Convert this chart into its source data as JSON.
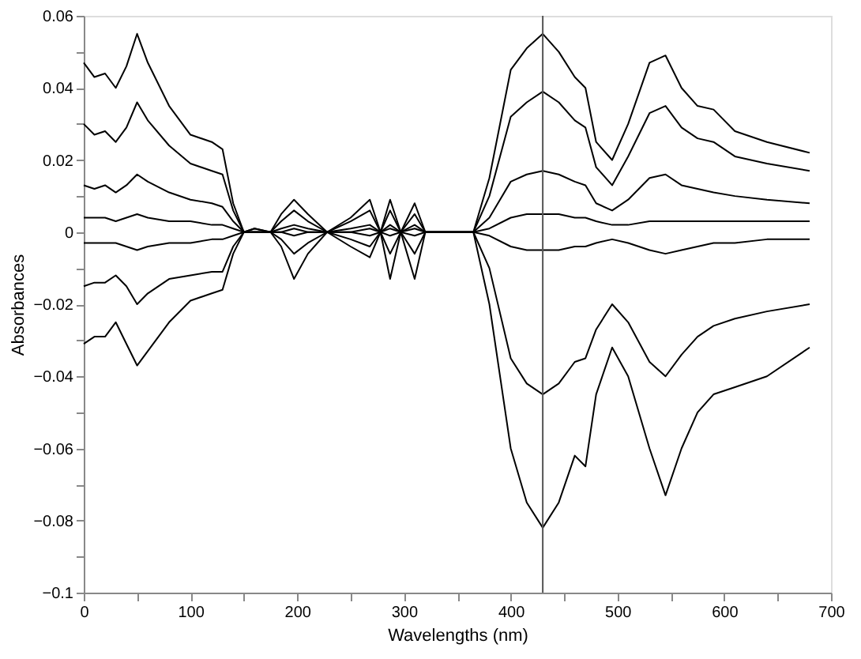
{
  "chart_data": {
    "type": "line",
    "xlabel": "Wavelengths (nm)",
    "ylabel": "Absorbances",
    "x": [
      0,
      10,
      20,
      30,
      40,
      50,
      60,
      80,
      100,
      120,
      130,
      140,
      150,
      160,
      175,
      185,
      197,
      210,
      228,
      250,
      268,
      278,
      287,
      297,
      310,
      320,
      340,
      365,
      380,
      400,
      415,
      430,
      445,
      460,
      470,
      480,
      495,
      510,
      530,
      545,
      560,
      575,
      590,
      610,
      640,
      680
    ],
    "series": [
      {
        "color": "#000000",
        "values": [
          0.047,
          0.043,
          0.044,
          0.04,
          0.046,
          0.055,
          0.047,
          0.035,
          0.027,
          0.025,
          0.023,
          0.008,
          0.0,
          0.001,
          0.0,
          0.005,
          0.009,
          0.005,
          0.0,
          0.004,
          0.009,
          0.0,
          0.009,
          0.0,
          0.008,
          0.0,
          0.0,
          0.0,
          0.015,
          0.045,
          0.051,
          0.055,
          0.05,
          0.043,
          0.04,
          0.025,
          0.02,
          0.03,
          0.047,
          0.049,
          0.04,
          0.035,
          0.034,
          0.028,
          0.025,
          0.022
        ]
      },
      {
        "color": "#000000",
        "values": [
          0.03,
          0.027,
          0.028,
          0.025,
          0.029,
          0.036,
          0.031,
          0.024,
          0.019,
          0.017,
          0.016,
          0.006,
          0.0,
          0.001,
          0.0,
          0.003,
          0.006,
          0.003,
          0.0,
          0.003,
          0.006,
          0.0,
          0.006,
          0.0,
          0.005,
          0.0,
          0.0,
          0.0,
          0.01,
          0.032,
          0.036,
          0.039,
          0.036,
          0.031,
          0.029,
          0.018,
          0.013,
          0.021,
          0.033,
          0.035,
          0.029,
          0.026,
          0.025,
          0.021,
          0.019,
          0.017
        ]
      },
      {
        "color": "#000000",
        "values": [
          0.013,
          0.012,
          0.013,
          0.011,
          0.013,
          0.016,
          0.014,
          0.011,
          0.009,
          0.008,
          0.007,
          0.003,
          0.0,
          0.0,
          0.0,
          0.001,
          0.002,
          0.001,
          0.0,
          0.001,
          0.002,
          0.0,
          0.002,
          0.0,
          0.002,
          0.0,
          0.0,
          0.0,
          0.004,
          0.014,
          0.016,
          0.017,
          0.016,
          0.014,
          0.013,
          0.008,
          0.006,
          0.009,
          0.015,
          0.016,
          0.013,
          0.012,
          0.011,
          0.01,
          0.009,
          0.008
        ]
      },
      {
        "color": "#000000",
        "values": [
          0.004,
          0.004,
          0.004,
          0.003,
          0.004,
          0.005,
          0.004,
          0.003,
          0.003,
          0.002,
          0.002,
          0.001,
          0.0,
          0.0,
          0.0,
          0.0,
          0.001,
          0.0,
          0.0,
          0.0,
          0.001,
          0.0,
          0.001,
          0.0,
          0.001,
          0.0,
          0.0,
          0.0,
          0.001,
          0.004,
          0.005,
          0.005,
          0.005,
          0.004,
          0.004,
          0.003,
          0.002,
          0.002,
          0.003,
          0.003,
          0.003,
          0.003,
          0.003,
          0.003,
          0.003,
          0.003
        ]
      },
      {
        "color": "#000000",
        "values": [
          -0.003,
          -0.003,
          -0.003,
          -0.003,
          -0.004,
          -0.005,
          -0.004,
          -0.003,
          -0.003,
          -0.002,
          -0.002,
          -0.001,
          0.0,
          0.0,
          0.0,
          0.0,
          -0.001,
          0.0,
          0.0,
          0.0,
          -0.001,
          0.0,
          -0.001,
          0.0,
          -0.001,
          0.0,
          0.0,
          0.0,
          -0.001,
          -0.004,
          -0.005,
          -0.005,
          -0.005,
          -0.004,
          -0.004,
          -0.003,
          -0.002,
          -0.003,
          -0.005,
          -0.006,
          -0.005,
          -0.004,
          -0.003,
          -0.003,
          -0.002,
          -0.002
        ]
      },
      {
        "color": "#000000",
        "values": [
          -0.015,
          -0.014,
          -0.014,
          -0.012,
          -0.015,
          -0.02,
          -0.017,
          -0.013,
          -0.012,
          -0.011,
          -0.011,
          -0.004,
          0.0,
          0.0,
          0.0,
          -0.002,
          -0.006,
          -0.003,
          0.0,
          -0.002,
          -0.004,
          0.0,
          -0.006,
          0.0,
          -0.006,
          0.0,
          0.0,
          0.0,
          -0.01,
          -0.035,
          -0.042,
          -0.045,
          -0.042,
          -0.036,
          -0.035,
          -0.027,
          -0.02,
          -0.025,
          -0.036,
          -0.04,
          -0.034,
          -0.029,
          -0.026,
          -0.024,
          -0.022,
          -0.02
        ]
      },
      {
        "color": "#000000",
        "values": [
          -0.031,
          -0.029,
          -0.029,
          -0.025,
          -0.031,
          -0.037,
          -0.033,
          -0.025,
          -0.019,
          -0.017,
          -0.016,
          -0.006,
          0.0,
          0.0,
          0.0,
          -0.004,
          -0.013,
          -0.006,
          0.0,
          -0.004,
          -0.007,
          0.0,
          -0.013,
          0.0,
          -0.013,
          0.0,
          0.0,
          0.0,
          -0.02,
          -0.06,
          -0.075,
          -0.082,
          -0.075,
          -0.062,
          -0.065,
          -0.045,
          -0.032,
          -0.04,
          -0.06,
          -0.073,
          -0.06,
          -0.05,
          -0.045,
          -0.043,
          -0.04,
          -0.032
        ]
      }
    ],
    "xlim": [
      0,
      700
    ],
    "xticks": [
      0,
      {
        "value": 50,
        "label": null
      },
      100,
      {
        "value": 150,
        "label": null
      },
      200,
      {
        "value": 250,
        "label": null
      },
      300,
      {
        "value": 350,
        "label": null
      },
      400,
      {
        "value": 450,
        "label": null
      },
      500,
      {
        "value": 550,
        "label": null
      },
      600,
      {
        "value": 650,
        "label": null
      },
      700
    ],
    "ylim": [
      -0.1,
      0.06
    ],
    "yticks": [
      {
        "value": -0.1,
        "label": "−0.1"
      },
      {
        "value": -0.09,
        "label": null
      },
      {
        "value": -0.08,
        "label": "−0.08"
      },
      {
        "value": -0.07,
        "label": null
      },
      {
        "value": -0.06,
        "label": "−0.06"
      },
      {
        "value": -0.05,
        "label": null
      },
      {
        "value": -0.04,
        "label": "−0.04"
      },
      {
        "value": -0.03,
        "label": null
      },
      {
        "value": -0.02,
        "label": "−0.02"
      },
      {
        "value": -0.01,
        "label": null
      },
      0,
      {
        "value": 0.01,
        "label": null
      },
      0.02,
      {
        "value": 0.03,
        "label": null
      },
      0.04,
      {
        "value": 0.05,
        "label": null
      },
      0.06
    ],
    "ref_lines": [
      {
        "axis": "x",
        "value": 430,
        "color": "#555555"
      }
    ],
    "grid": false,
    "marker": "none",
    "line_style": "solid"
  }
}
